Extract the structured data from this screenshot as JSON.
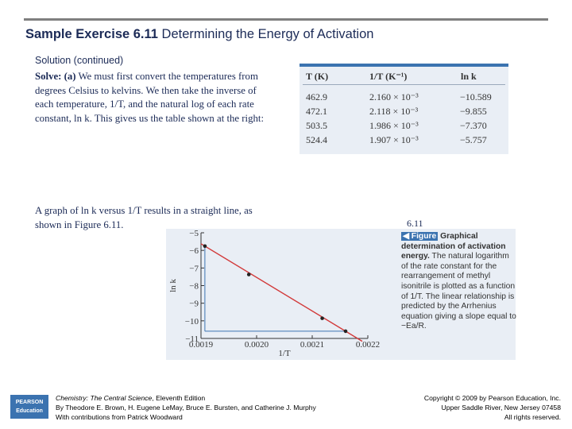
{
  "slide": {
    "title_bold": "Sample Exercise 6.11",
    "title_rest": " Determining the Energy of Activation",
    "solution_bold": "Solution",
    "solution_rest": " (continued)",
    "solve_bold": "Solve: (a)",
    "solve_text": " We must first convert the temperatures from degrees Celsius to kelvins. We then take the inverse of each temperature, 1/T, and the natural log of each rate constant, ln k. This gives us the table shown at the right:",
    "graph_text": "A graph of ln k versus 1/T results in a straight line, as shown in Figure 6.11.",
    "figure_number": "6.11"
  },
  "table": {
    "headers": [
      "T (K)",
      "1/T (K⁻¹)",
      "ln k"
    ],
    "rows": [
      [
        "462.9",
        "2.160 × 10⁻³",
        "−10.589"
      ],
      [
        "472.1",
        "2.118 × 10⁻³",
        "−9.855"
      ],
      [
        "503.5",
        "1.986 × 10⁻³",
        "−7.370"
      ],
      [
        "524.4",
        "1.907 × 10⁻³",
        "−5.757"
      ]
    ]
  },
  "chart_data": {
    "type": "line",
    "xlabel": "1/T",
    "ylabel": "ln k",
    "xlim": [
      0.0019,
      0.0022
    ],
    "ylim": [
      -11,
      -5
    ],
    "xticks": [
      "0.0019",
      "0.0020",
      "0.0021",
      "0.0022"
    ],
    "yticks": [
      "−5",
      "−6",
      "−7",
      "−8",
      "−9",
      "−10",
      "−11"
    ],
    "points": [
      {
        "x": 0.001907,
        "y": -5.757
      },
      {
        "x": 0.001986,
        "y": -7.37
      },
      {
        "x": 0.002118,
        "y": -9.855
      },
      {
        "x": 0.00216,
        "y": -10.589
      }
    ],
    "line_color": "#d23a3a",
    "guide_color": "#3b73b0"
  },
  "caption": {
    "figure_label": "◀ Figure",
    "bold_text": "Graphical determination of activation energy.",
    "text": " The natural logarithm of the rate constant for the rearrangement of methyl isonitrile is plotted as a function of 1/T. The linear relationship is predicted by the Arrhenius equation giving a slope equal to −Ea/R."
  },
  "footer": {
    "logo_line1": "PEARSON",
    "logo_line2": "Education",
    "book_title": "Chemistry: The Central Science",
    "book_edition": ", Eleventh Edition",
    "authors": "By Theodore E. Brown, H. Eugene LeMay, Bruce E. Bursten, and Catherine J. Murphy",
    "contributions": "With contributions from Patrick Woodward",
    "copyright": "Copyright © 2009 by Pearson Education, Inc.",
    "address": "Upper Saddle River, New Jersey 07458",
    "rights": "All rights reserved."
  }
}
